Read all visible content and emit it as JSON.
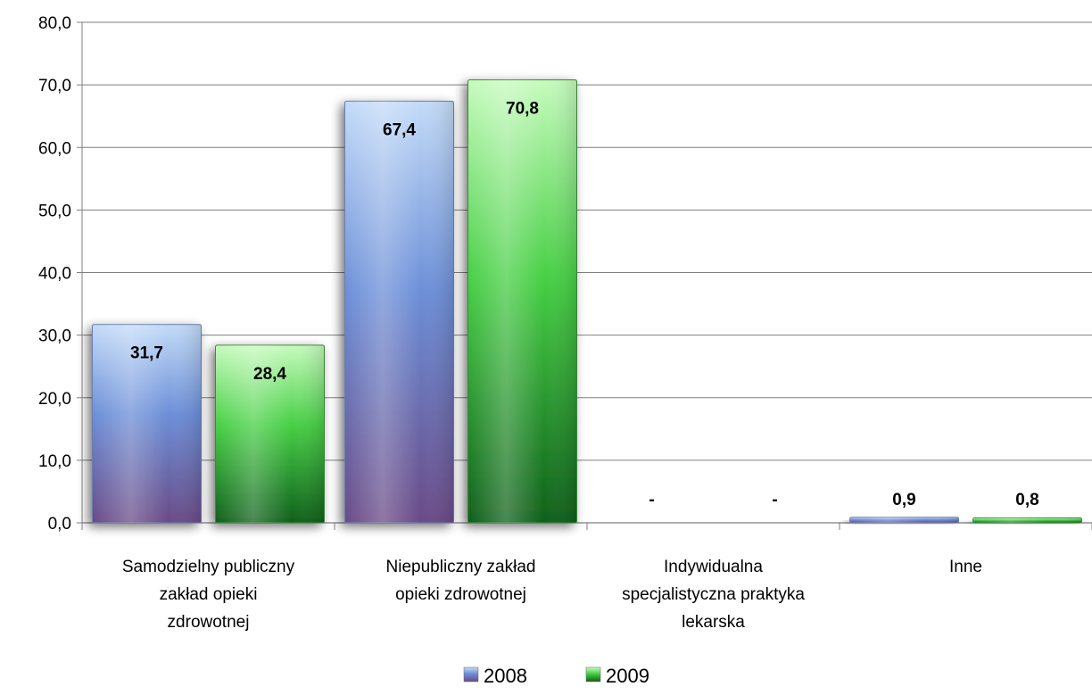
{
  "chart_data": {
    "type": "bar",
    "categories": [
      [
        "Samodzielny publiczny",
        "zakład opieki",
        "zdrowotnej"
      ],
      [
        "Niepubliczny zakład",
        "opieki zdrowotnej"
      ],
      [
        "Indywidualna",
        "specjalistyczna praktyka",
        "lekarska"
      ],
      [
        "Inne"
      ]
    ],
    "series": [
      {
        "name": "2008",
        "values": [
          31.7,
          67.4,
          0,
          0.9
        ],
        "labels": [
          "31,7",
          "67,4",
          "-",
          "0,9"
        ]
      },
      {
        "name": "2009",
        "values": [
          28.4,
          70.8,
          0,
          0.8
        ],
        "labels": [
          "28,4",
          "70,8",
          "-",
          "0,8"
        ]
      }
    ],
    "yticks": [
      "0,0",
      "10,0",
      "20,0",
      "30,0",
      "40,0",
      "50,0",
      "60,0",
      "70,0",
      "80,0"
    ],
    "ylim": [
      0,
      80
    ],
    "grid": true,
    "legend_position": "bottom"
  },
  "colors": {
    "series_2008": [
      "#b9d3f5",
      "#5b7fd0",
      "#6c4a8a"
    ],
    "series_2009": [
      "#b8f8b0",
      "#3dc83d",
      "#0e5e1a"
    ],
    "grid": "#7f7f7f"
  }
}
